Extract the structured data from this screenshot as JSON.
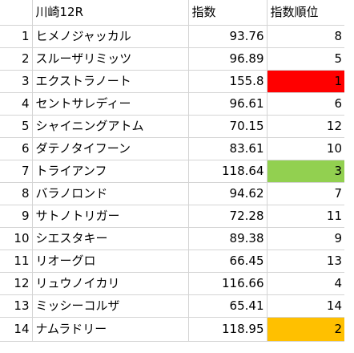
{
  "header": {
    "num": "",
    "name": "川崎12R",
    "index": "指数",
    "rank": "指数順位"
  },
  "rows": [
    {
      "num": "1",
      "name": "ヒメノジャッカル",
      "index": "93.76",
      "rank": "8",
      "highlight": ""
    },
    {
      "num": "2",
      "name": "スルーザリミッツ",
      "index": "96.89",
      "rank": "5",
      "highlight": ""
    },
    {
      "num": "3",
      "name": "エクストラノート",
      "index": "155.8",
      "rank": "1",
      "highlight": "#ff0000"
    },
    {
      "num": "4",
      "name": "セントサレディー",
      "index": "96.61",
      "rank": "6",
      "highlight": ""
    },
    {
      "num": "5",
      "name": "シャイニングアトム",
      "index": "70.15",
      "rank": "12",
      "highlight": ""
    },
    {
      "num": "6",
      "name": "ダテノタイフーン",
      "index": "83.61",
      "rank": "10",
      "highlight": ""
    },
    {
      "num": "7",
      "name": "トライアンフ",
      "index": "118.64",
      "rank": "3",
      "highlight": "#92d050"
    },
    {
      "num": "8",
      "name": "バラノロンド",
      "index": "94.62",
      "rank": "7",
      "highlight": ""
    },
    {
      "num": "9",
      "name": "サトノトリガー",
      "index": "72.28",
      "rank": "11",
      "highlight": ""
    },
    {
      "num": "10",
      "name": "シエスタキー",
      "index": "89.38",
      "rank": "9",
      "highlight": ""
    },
    {
      "num": "11",
      "name": "リオーグロ",
      "index": "66.45",
      "rank": "13",
      "highlight": ""
    },
    {
      "num": "12",
      "name": "リュウノイカリ",
      "index": "116.66",
      "rank": "4",
      "highlight": ""
    },
    {
      "num": "13",
      "name": "ミッシーコルザ",
      "index": "65.41",
      "rank": "14",
      "highlight": ""
    },
    {
      "num": "14",
      "name": "ナムラドリー",
      "index": "118.95",
      "rank": "2",
      "highlight": "#ffc000"
    }
  ]
}
